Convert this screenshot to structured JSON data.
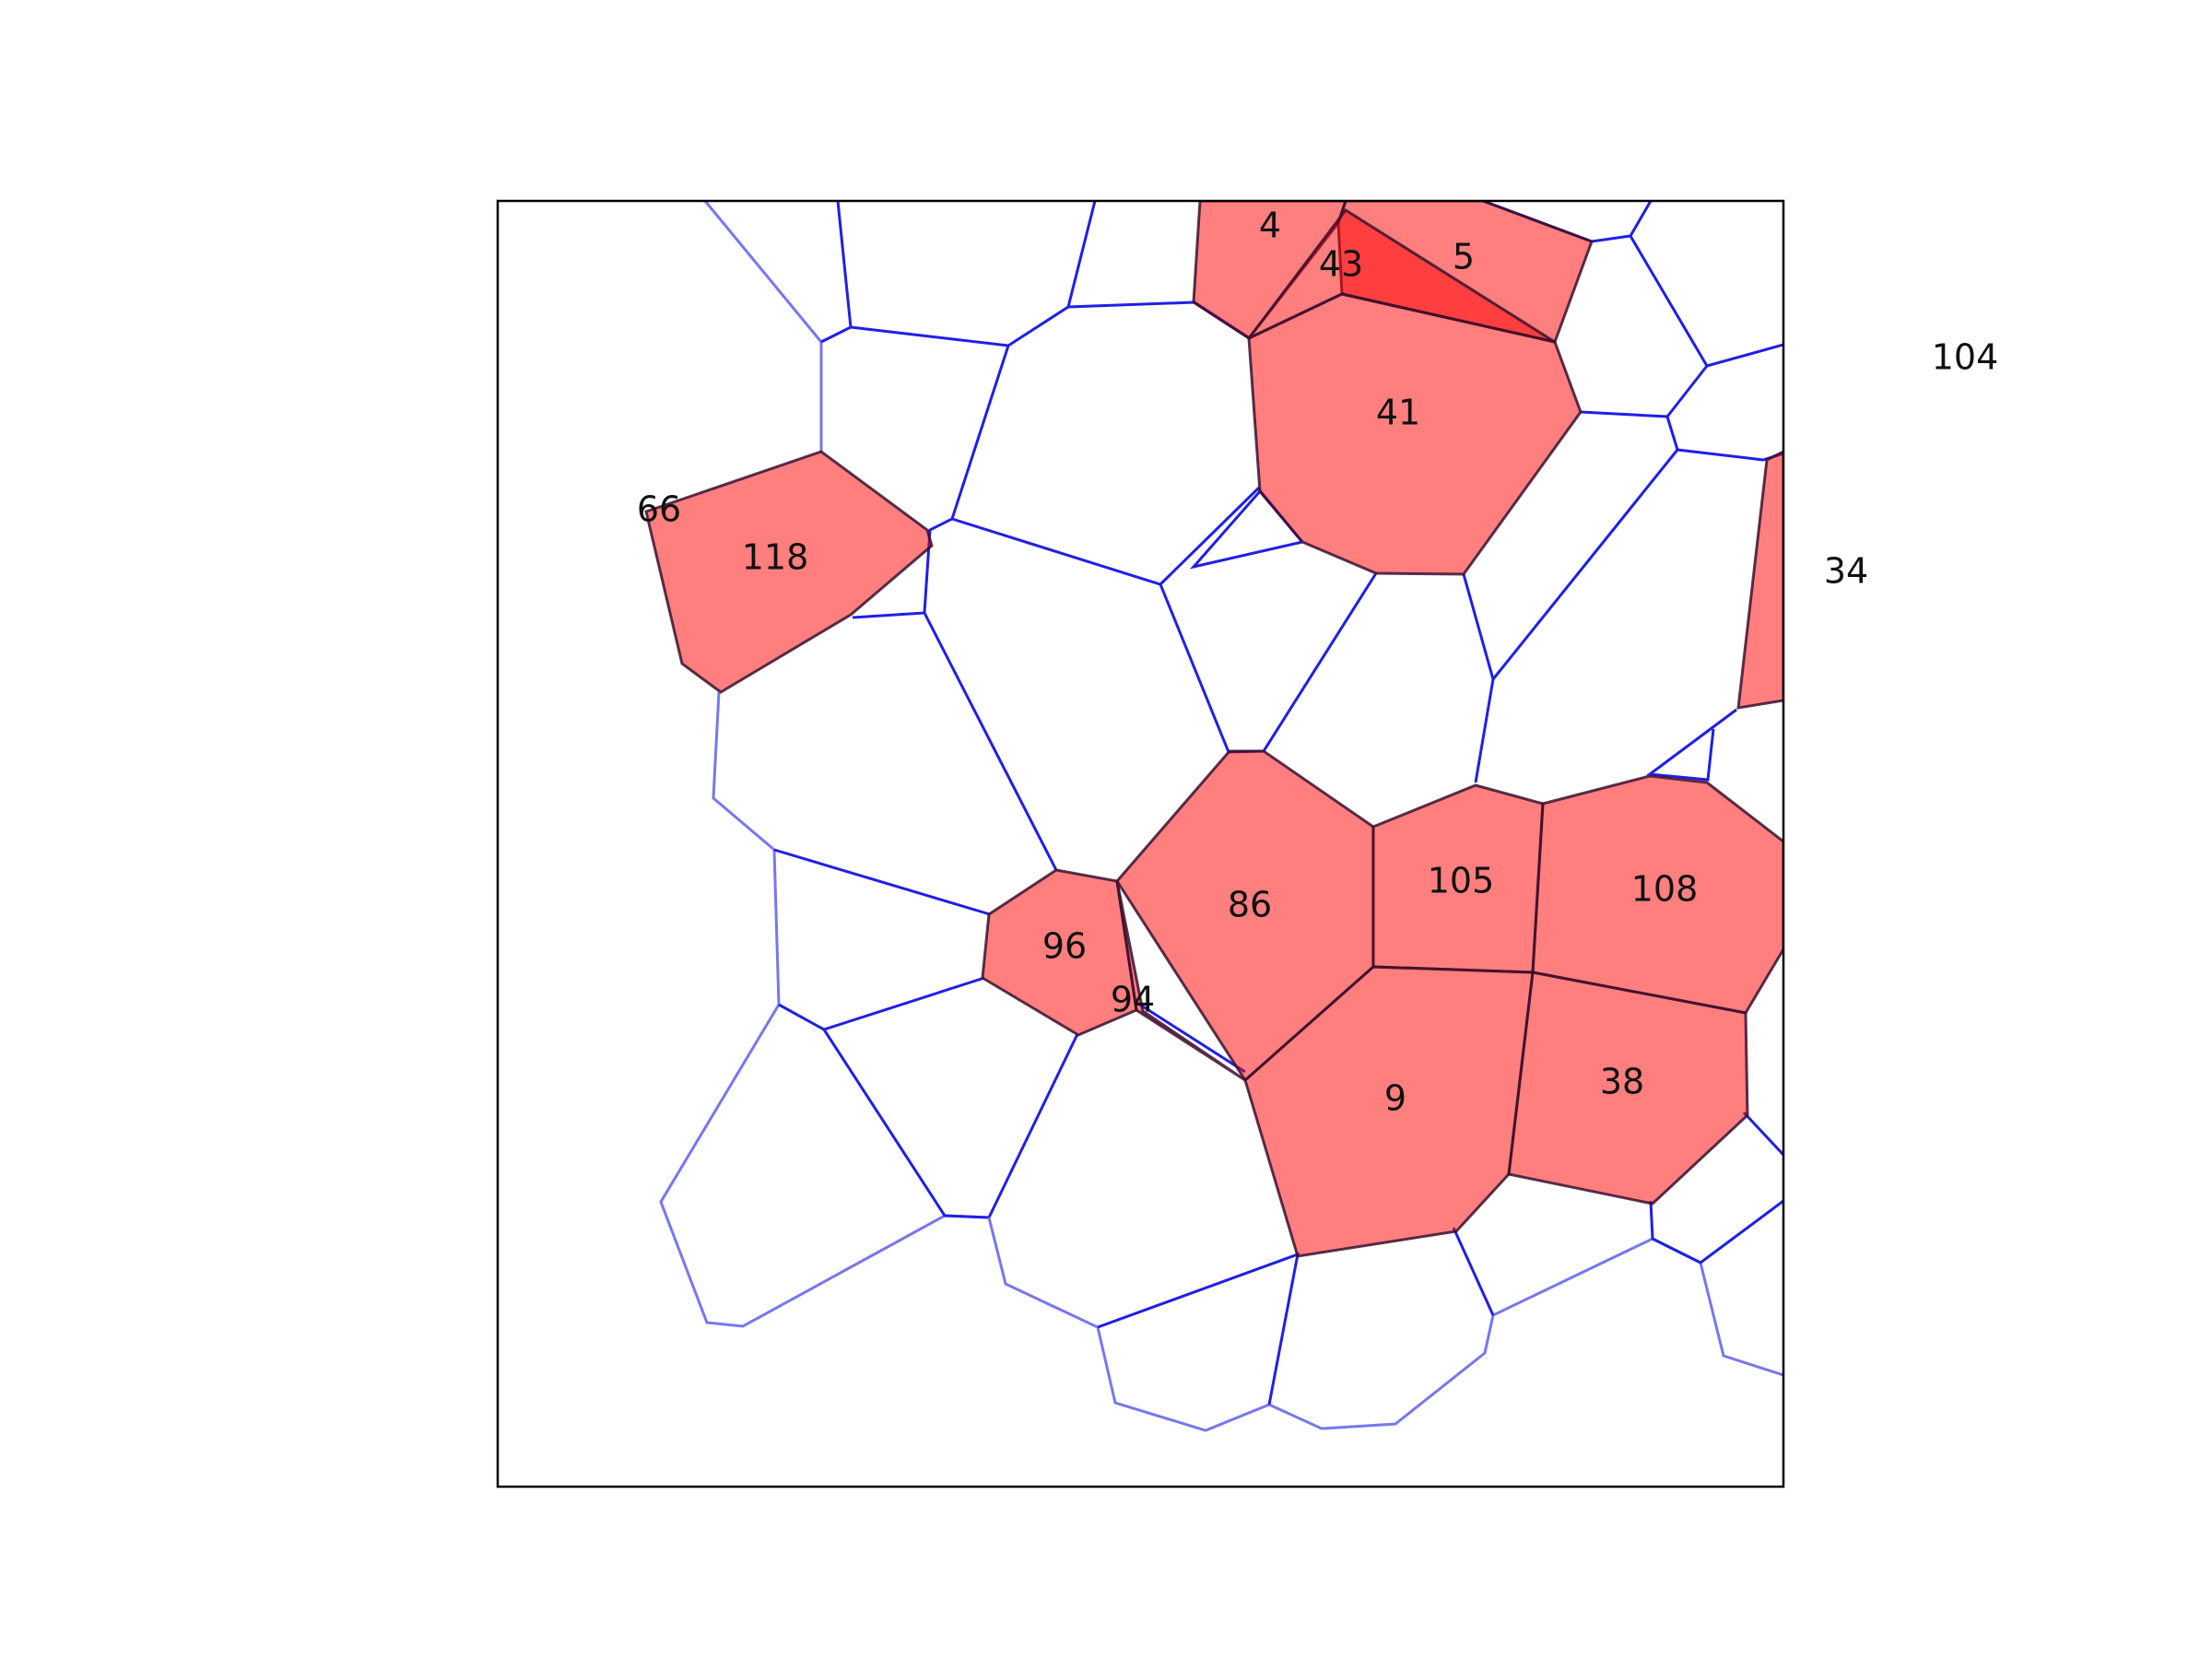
{
  "diagram": {
    "type": "voronoi-cell-selection",
    "highlight_color": "#ff0000",
    "edge_color": "#1f1fe8",
    "frame_color": "#000000",
    "labels": [
      "4",
      "43",
      "5",
      "104",
      "41",
      "66",
      "118",
      "34",
      "105",
      "108",
      "86",
      "96",
      "94",
      "9",
      "38"
    ]
  }
}
